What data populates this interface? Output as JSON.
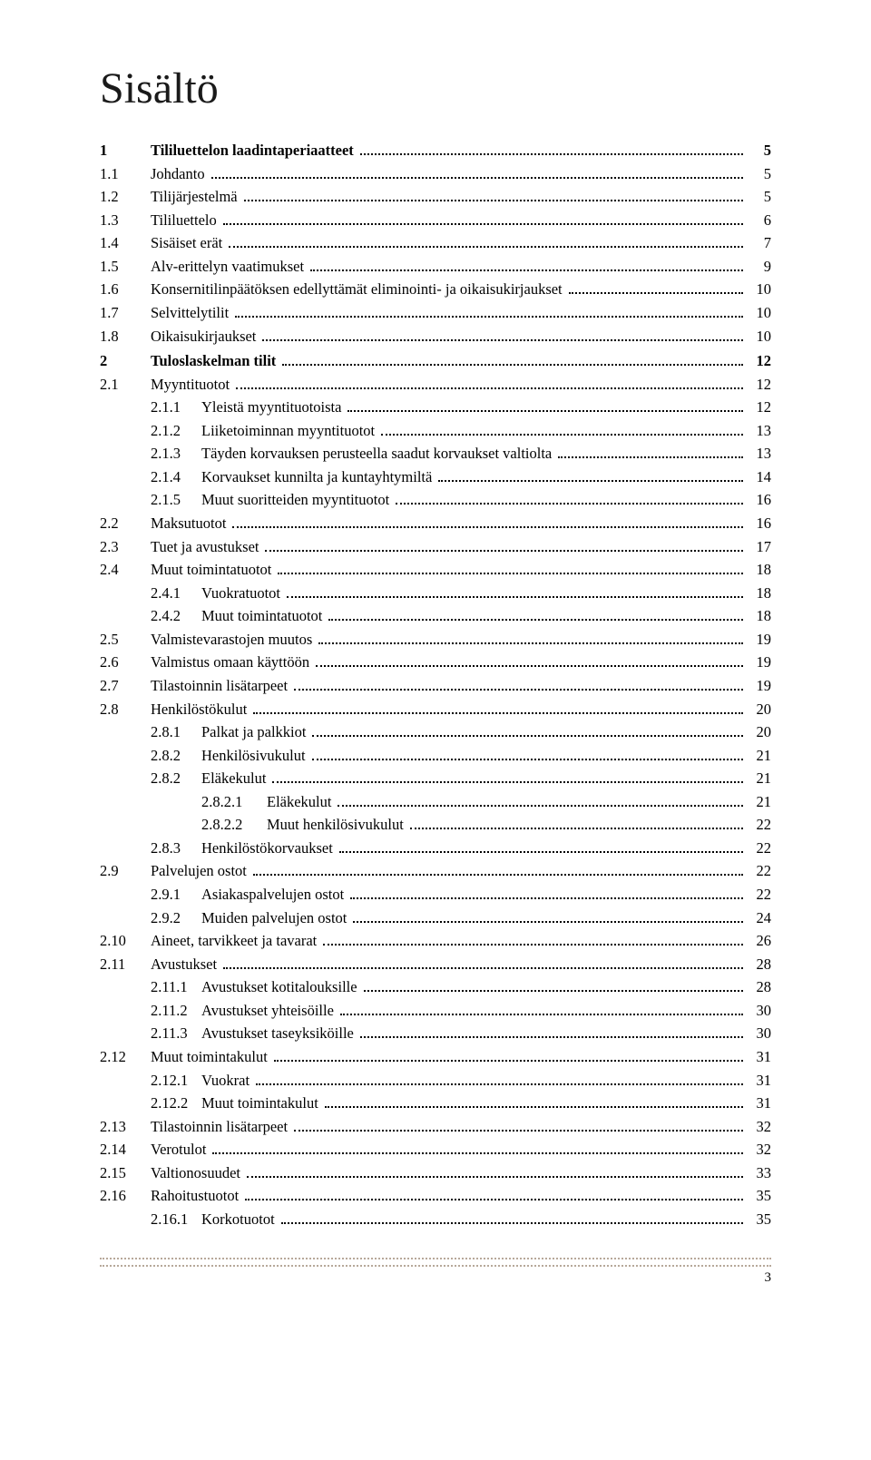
{
  "title": "Sisältö",
  "footerPage": "3",
  "entries": [
    {
      "num": "1",
      "label": "Tililuettelon laadintaperiaatteet",
      "page": "5",
      "bold": true,
      "indent": 0
    },
    {
      "num": "1.1",
      "label": "Johdanto",
      "page": "5",
      "bold": false,
      "indent": 0
    },
    {
      "num": "1.2",
      "label": "Tilijärjestelmä",
      "page": "5",
      "bold": false,
      "indent": 0
    },
    {
      "num": "1.3",
      "label": "Tililuettelo",
      "page": "6",
      "bold": false,
      "indent": 0
    },
    {
      "num": "1.4",
      "label": "Sisäiset erät",
      "page": "7",
      "bold": false,
      "indent": 0
    },
    {
      "num": "1.5",
      "label": "Alv-erittelyn vaatimukset",
      "page": "9",
      "bold": false,
      "indent": 0
    },
    {
      "num": "1.6",
      "label": "Konsernitilinpäätöksen edellyttämät eliminointi- ja oikaisukirjaukset",
      "page": "10",
      "bold": false,
      "indent": 0
    },
    {
      "num": "1.7",
      "label": "Selvittelytilit",
      "page": "10",
      "bold": false,
      "indent": 0
    },
    {
      "num": "1.8",
      "label": "Oikaisukirjaukset",
      "page": "10",
      "bold": false,
      "indent": 0
    },
    {
      "num": "2",
      "label": "Tuloslaskelman tilit",
      "page": "12",
      "bold": true,
      "indent": 0
    },
    {
      "num": "2.1",
      "label": "Myyntituotot",
      "page": "12",
      "bold": false,
      "indent": 0
    },
    {
      "num": "2.1.1",
      "label": "Yleistä myyntituotoista",
      "page": "12",
      "bold": false,
      "indent": 1
    },
    {
      "num": "2.1.2",
      "label": "Liiketoiminnan myyntituotot",
      "page": "13",
      "bold": false,
      "indent": 1
    },
    {
      "num": "2.1.3",
      "label": "Täyden korvauksen perusteella saadut korvaukset valtiolta",
      "page": "13",
      "bold": false,
      "indent": 1
    },
    {
      "num": "2.1.4",
      "label": "Korvaukset kunnilta ja kuntayhtymiltä",
      "page": "14",
      "bold": false,
      "indent": 1
    },
    {
      "num": "2.1.5",
      "label": "Muut suoritteiden myyntituotot",
      "page": "16",
      "bold": false,
      "indent": 1
    },
    {
      "num": "2.2",
      "label": "Maksutuotot",
      "page": "16",
      "bold": false,
      "indent": 0
    },
    {
      "num": "2.3",
      "label": "Tuet ja avustukset",
      "page": "17",
      "bold": false,
      "indent": 0
    },
    {
      "num": "2.4",
      "label": "Muut toimintatuotot",
      "page": "18",
      "bold": false,
      "indent": 0
    },
    {
      "num": "2.4.1",
      "label": "Vuokratuotot",
      "page": "18",
      "bold": false,
      "indent": 1
    },
    {
      "num": "2.4.2",
      "label": "Muut toimintatuotot",
      "page": "18",
      "bold": false,
      "indent": 1
    },
    {
      "num": "2.5",
      "label": "Valmistevarastojen muutos",
      "page": "19",
      "bold": false,
      "indent": 0
    },
    {
      "num": "2.6",
      "label": "Valmistus omaan käyttöön",
      "page": "19",
      "bold": false,
      "indent": 0
    },
    {
      "num": "2.7",
      "label": "Tilastoinnin lisätarpeet",
      "page": "19",
      "bold": false,
      "indent": 0
    },
    {
      "num": "2.8",
      "label": "Henkilöstökulut",
      "page": "20",
      "bold": false,
      "indent": 0
    },
    {
      "num": "2.8.1",
      "label": "Palkat ja palkkiot",
      "page": "20",
      "bold": false,
      "indent": 1
    },
    {
      "num": "2.8.2",
      "label": "Henkilösivukulut",
      "page": "21",
      "bold": false,
      "indent": 1
    },
    {
      "num": "2.8.2",
      "label": "Eläkekulut",
      "page": "21",
      "bold": false,
      "indent": 1
    },
    {
      "num": "2.8.2.1",
      "label": "Eläkekulut",
      "page": "21",
      "bold": false,
      "indent": 2
    },
    {
      "num": "2.8.2.2",
      "label": "Muut henkilösivukulut",
      "page": "22",
      "bold": false,
      "indent": 2
    },
    {
      "num": "2.8.3",
      "label": "Henkilöstökorvaukset",
      "page": "22",
      "bold": false,
      "indent": 1
    },
    {
      "num": "2.9",
      "label": "Palvelujen ostot",
      "page": "22",
      "bold": false,
      "indent": 0
    },
    {
      "num": "2.9.1",
      "label": "Asiakaspalvelujen ostot",
      "page": "22",
      "bold": false,
      "indent": 1
    },
    {
      "num": "2.9.2",
      "label": "Muiden palvelujen ostot",
      "page": "24",
      "bold": false,
      "indent": 1
    },
    {
      "num": "2.10",
      "label": "Aineet, tarvikkeet ja tavarat",
      "page": "26",
      "bold": false,
      "indent": 0
    },
    {
      "num": "2.11",
      "label": "Avustukset",
      "page": "28",
      "bold": false,
      "indent": 0
    },
    {
      "num": "2.11.1",
      "label": "Avustukset kotitalouksille",
      "page": "28",
      "bold": false,
      "indent": 1
    },
    {
      "num": "2.11.2",
      "label": "Avustukset yhteisöille",
      "page": "30",
      "bold": false,
      "indent": 1
    },
    {
      "num": "2.11.3",
      "label": "Avustukset taseyksiköille",
      "page": "30",
      "bold": false,
      "indent": 1
    },
    {
      "num": "2.12",
      "label": "Muut toimintakulut",
      "page": "31",
      "bold": false,
      "indent": 0
    },
    {
      "num": "2.12.1",
      "label": "Vuokrat",
      "page": "31",
      "bold": false,
      "indent": 1
    },
    {
      "num": "2.12.2",
      "label": "Muut toimintakulut",
      "page": "31",
      "bold": false,
      "indent": 1
    },
    {
      "num": "2.13",
      "label": "Tilastoinnin lisätarpeet",
      "page": "32",
      "bold": false,
      "indent": 0
    },
    {
      "num": "2.14",
      "label": "Verotulot",
      "page": "32",
      "bold": false,
      "indent": 0
    },
    {
      "num": "2.15",
      "label": "Valtionosuudet",
      "page": "33",
      "bold": false,
      "indent": 0
    },
    {
      "num": "2.16",
      "label": "Rahoitustuotot",
      "page": "35",
      "bold": false,
      "indent": 0
    },
    {
      "num": "2.16.1",
      "label": "Korkotuotot",
      "page": "35",
      "bold": false,
      "indent": 1
    }
  ]
}
